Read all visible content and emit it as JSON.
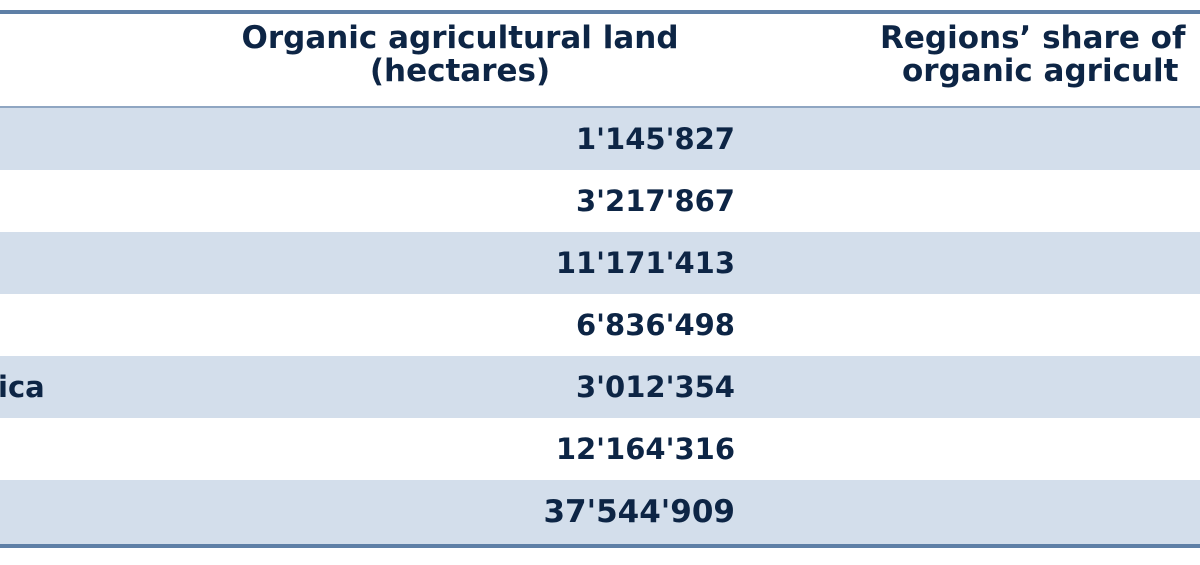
{
  "header": {
    "land_line1": "Organic agricultural land",
    "land_line2": "(hectares)",
    "share_line1": "Regions’ share of",
    "share_line2": "organic agricult"
  },
  "rows": [
    {
      "region": "",
      "land": "1'145'827"
    },
    {
      "region": "",
      "land": "3'217'867"
    },
    {
      "region": "",
      "land": "11'171'413"
    },
    {
      "region": "",
      "land": "6'836'498"
    },
    {
      "region": "ica",
      "land": "3'012'354"
    },
    {
      "region": "",
      "land": "12'164'316"
    },
    {
      "region": "",
      "land": "37'544'909"
    }
  ],
  "colors": {
    "text": "#0d2545",
    "row_shade": "#d3deeb",
    "rule": "#5e7fa6"
  }
}
